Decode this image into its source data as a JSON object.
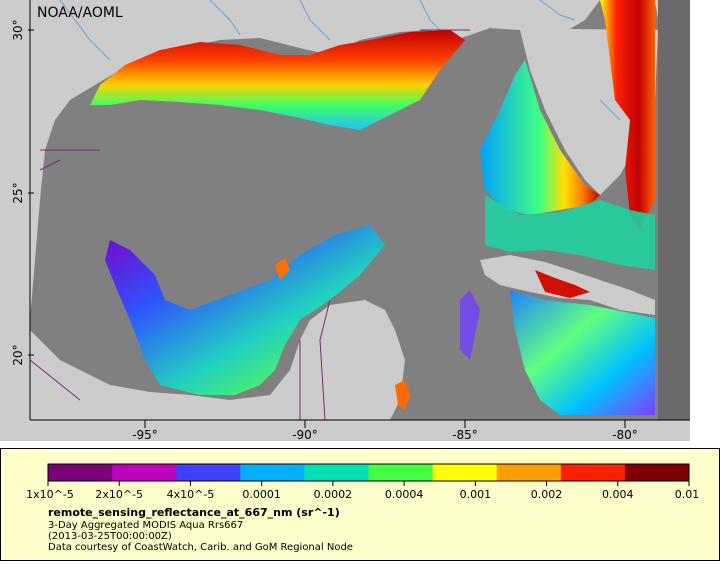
{
  "map": {
    "credit": "NOAA/AOML",
    "lon_ticks": [
      {
        "value": -95,
        "label": "-95°"
      },
      {
        "value": -90,
        "label": "-90°"
      },
      {
        "value": -85,
        "label": "-85°"
      },
      {
        "value": -80,
        "label": "-80°"
      }
    ],
    "lat_ticks": [
      {
        "value": 30,
        "label": "30°"
      },
      {
        "value": 25,
        "label": "25°"
      },
      {
        "value": 20,
        "label": "20°"
      }
    ],
    "colors": {
      "water": "#808080",
      "land": "#cccccc",
      "rivers": "#6fa0d0",
      "borders": "#7a2a6a"
    }
  },
  "legend": {
    "colorbar_stops": [
      "#7a007a",
      "#c000c0",
      "#4040ff",
      "#00b0ff",
      "#00e0b0",
      "#40ff40",
      "#ffff00",
      "#ffa000",
      "#ff2000",
      "#800000"
    ],
    "tick_labels": [
      "1x10^-5",
      "2x10^-5",
      "4x10^-5",
      "0.0001",
      "0.0002",
      "0.0004",
      "0.001",
      "0.002",
      "0.004",
      "0.01"
    ],
    "variable": "remote_sensing_reflectance_at_667_nm (sr^-1)",
    "description": "3-Day Aggregated MODIS Aqua Rrs667",
    "time": "(2013-03-25T00:00:00Z)",
    "courtesy": "Data courtesy of CoastWatch, Carib. and GoM Regional Node"
  }
}
